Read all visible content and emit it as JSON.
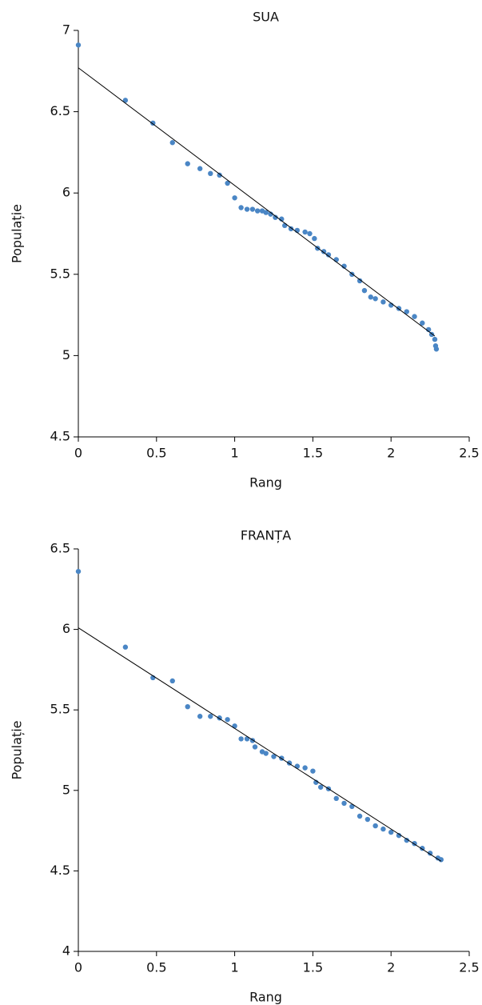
{
  "chart_data": [
    {
      "type": "scatter",
      "title": "SUA",
      "xlabel": "Rang",
      "ylabel": "Populație",
      "xlim": [
        0,
        2.5
      ],
      "xticks": [
        0,
        0.5,
        1,
        1.5,
        2,
        2.5
      ],
      "ylim": [
        4.5,
        7
      ],
      "yticks": [
        4.5,
        5,
        5.5,
        6,
        6.5,
        7
      ],
      "series": [
        {
          "mode": "markers",
          "color": "#4a86c5",
          "x": [
            0,
            0.301,
            0.477,
            0.602,
            0.699,
            0.778,
            0.845,
            0.903,
            0.954,
            1.0,
            1.041,
            1.079,
            1.114,
            1.146,
            1.176,
            1.2,
            1.23,
            1.26,
            1.3,
            1.32,
            1.36,
            1.4,
            1.45,
            1.48,
            1.51,
            1.53,
            1.57,
            1.6,
            1.65,
            1.7,
            1.75,
            1.8,
            1.83,
            1.87,
            1.9,
            1.95,
            2.0,
            2.05,
            2.1,
            2.15,
            2.2,
            2.24,
            2.26,
            2.28,
            2.285,
            2.29
          ],
          "values": [
            6.91,
            6.57,
            6.43,
            6.31,
            6.18,
            6.15,
            6.12,
            6.11,
            6.06,
            5.97,
            5.91,
            5.9,
            5.9,
            5.89,
            5.89,
            5.88,
            5.87,
            5.85,
            5.84,
            5.8,
            5.78,
            5.77,
            5.76,
            5.75,
            5.72,
            5.66,
            5.64,
            5.62,
            5.59,
            5.55,
            5.5,
            5.46,
            5.4,
            5.36,
            5.35,
            5.33,
            5.31,
            5.29,
            5.27,
            5.24,
            5.2,
            5.16,
            5.13,
            5.1,
            5.06,
            5.04
          ]
        },
        {
          "mode": "line",
          "color": "#000000",
          "x": [
            0,
            2.28
          ],
          "values": [
            6.77,
            5.12
          ]
        }
      ]
    },
    {
      "type": "scatter",
      "title": "FRANȚA",
      "xlabel": "Rang",
      "ylabel": "Populație",
      "xlim": [
        0,
        2.5
      ],
      "xticks": [
        0,
        0.5,
        1,
        1.5,
        2,
        2.5
      ],
      "ylim": [
        4,
        6.5
      ],
      "yticks": [
        4,
        4.5,
        5,
        5.5,
        6,
        6.5
      ],
      "series": [
        {
          "mode": "markers",
          "color": "#4a86c5",
          "x": [
            0,
            0.301,
            0.477,
            0.602,
            0.699,
            0.778,
            0.845,
            0.903,
            0.954,
            1.0,
            1.041,
            1.079,
            1.114,
            1.13,
            1.176,
            1.2,
            1.25,
            1.3,
            1.35,
            1.4,
            1.45,
            1.5,
            1.52,
            1.55,
            1.6,
            1.65,
            1.7,
            1.75,
            1.8,
            1.85,
            1.9,
            1.95,
            2.0,
            2.05,
            2.1,
            2.15,
            2.2,
            2.25,
            2.3,
            2.32
          ],
          "values": [
            6.36,
            5.89,
            5.7,
            5.68,
            5.52,
            5.46,
            5.46,
            5.45,
            5.44,
            5.4,
            5.32,
            5.32,
            5.31,
            5.27,
            5.24,
            5.23,
            5.21,
            5.2,
            5.17,
            5.15,
            5.14,
            5.12,
            5.05,
            5.02,
            5.01,
            4.95,
            4.92,
            4.9,
            4.84,
            4.82,
            4.78,
            4.76,
            4.74,
            4.72,
            4.69,
            4.67,
            4.64,
            4.61,
            4.58,
            4.57
          ]
        },
        {
          "mode": "line",
          "color": "#000000",
          "x": [
            0,
            2.32
          ],
          "values": [
            6.01,
            4.56
          ]
        }
      ]
    }
  ]
}
